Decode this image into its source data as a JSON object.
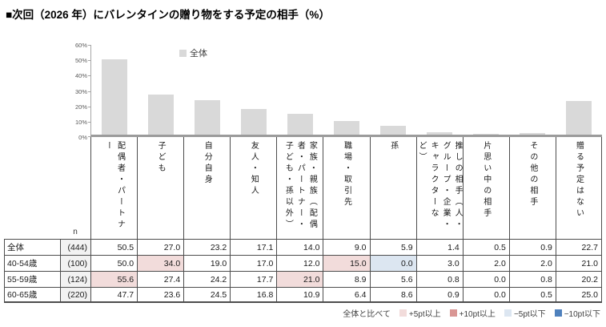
{
  "title": "■次回（2026 年）にバレンタインの贈り物をする予定の相手（%）",
  "colors": {
    "bar": "#d9d9d9",
    "axis": "#9b9b9b",
    "plus5": "#f2dcdb",
    "plus10": "#d99694",
    "minus5": "#dce6f1",
    "minus10": "#4f81bd",
    "n_column_bg": "#f2f2f2",
    "table_border": "#4d4d4d"
  },
  "chart_data": {
    "type": "bar",
    "title": "次回（2026 年）にバレンタインの贈り物をする予定の相手（%）",
    "legend_label": "全体",
    "legend_position": "top-inside",
    "grid": false,
    "ylim": [
      0,
      60
    ],
    "yticks": [
      "60%",
      "50%",
      "40%",
      "30%",
      "20%",
      "10%",
      "0%"
    ],
    "categories": [
      "配偶者・パートナー",
      "子ども",
      "自分自身",
      "友人・知人",
      "家族・親族（配偶者・パートナー・子ども・孫以外）",
      "職場・取引先",
      "孫",
      "推しの相手（人・グループ・企業・キャラクターなど）",
      "片思い中の相手",
      "その他の相手",
      "贈る予定はない"
    ],
    "values": [
      50.5,
      27.0,
      23.2,
      17.1,
      14.0,
      9.0,
      5.9,
      1.4,
      0.5,
      0.9,
      22.7
    ]
  },
  "table": {
    "n_header": "n",
    "rows": [
      {
        "label": "全体",
        "n": "(444)",
        "values": [
          "50.5",
          "27.0",
          "23.2",
          "17.1",
          "14.0",
          "9.0",
          "5.9",
          "1.4",
          "0.5",
          "0.9",
          "22.7"
        ],
        "flags": [
          "",
          "",
          "",
          "",
          "",
          "",
          "",
          "",
          "",
          "",
          ""
        ]
      },
      {
        "label": "40-54歳",
        "n": "(100)",
        "values": [
          "50.0",
          "34.0",
          "19.0",
          "17.0",
          "12.0",
          "15.0",
          "0.0",
          "3.0",
          "2.0",
          "2.0",
          "21.0"
        ],
        "flags": [
          "",
          "plus5",
          "",
          "",
          "",
          "plus5",
          "minus5",
          "",
          "",
          "",
          ""
        ]
      },
      {
        "label": "55-59歳",
        "n": "(124)",
        "values": [
          "55.6",
          "27.4",
          "24.2",
          "17.7",
          "21.0",
          "8.9",
          "5.6",
          "0.8",
          "0.0",
          "0.8",
          "20.2"
        ],
        "flags": [
          "plus5",
          "",
          "",
          "",
          "plus5",
          "",
          "",
          "",
          "",
          "",
          ""
        ]
      },
      {
        "label": "60-65歳",
        "n": "(220)",
        "values": [
          "47.7",
          "23.6",
          "24.5",
          "16.8",
          "10.9",
          "6.4",
          "8.6",
          "0.9",
          "0.0",
          "0.5",
          "25.0"
        ],
        "flags": [
          "",
          "",
          "",
          "",
          "",
          "",
          "",
          "",
          "",
          "",
          ""
        ]
      }
    ]
  },
  "footnote": {
    "prefix": "全体と比べて",
    "items": [
      {
        "swatch": "#f2dcdb",
        "label": "+5pt以上"
      },
      {
        "swatch": "#d99694",
        "label": "+10pt以上"
      },
      {
        "swatch": "#dce6f1",
        "label": "−5pt以下"
      },
      {
        "swatch": "#4f81bd",
        "label": "−10pt以下"
      }
    ]
  }
}
